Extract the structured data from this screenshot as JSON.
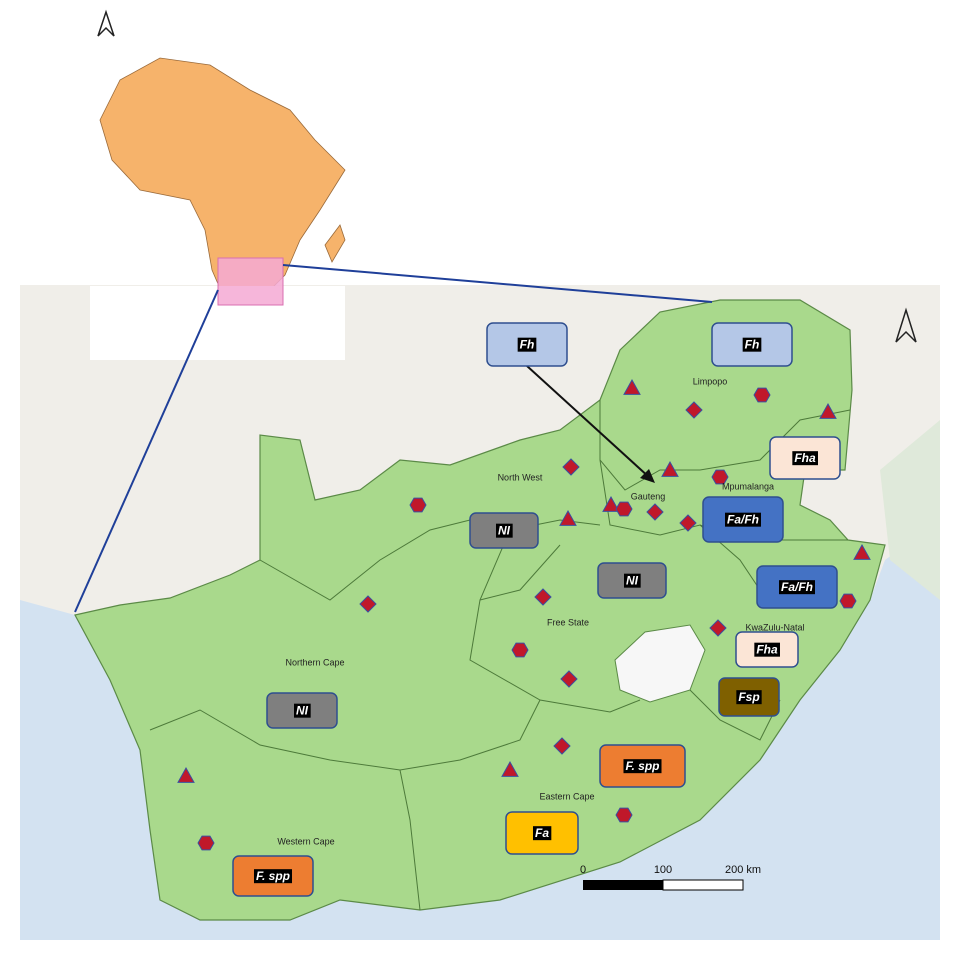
{
  "provinces": [
    "Limpopo",
    "Mpumalanga",
    "Gauteng",
    "North West",
    "Free State",
    "KwaZulu-Natal",
    "Northern Cape",
    "Eastern Cape",
    "Western Cape"
  ],
  "labels": [
    {
      "text": "Fh",
      "color": "#b4c7e7"
    },
    {
      "text": "Fh",
      "color": "#b4c7e7"
    },
    {
      "text": "Fha",
      "color": "#fbe5d6"
    },
    {
      "text": "Fa/Fh",
      "color": "#4472c4"
    },
    {
      "text": "NI",
      "color": "#7f7f7f"
    },
    {
      "text": "NI",
      "color": "#7f7f7f"
    },
    {
      "text": "Fa/Fh",
      "color": "#4472c4"
    },
    {
      "text": "Fha",
      "color": "#fbe5d6"
    },
    {
      "text": "Fsp",
      "color": "#7f6000"
    },
    {
      "text": "F. spp",
      "color": "#ed7d31"
    },
    {
      "text": "NI",
      "color": "#7f7f7f"
    },
    {
      "text": "Fa",
      "color": "#ffc000"
    },
    {
      "text": "F. spp",
      "color": "#ed7d31"
    }
  ],
  "scale_bar": {
    "ticks": [
      "0",
      "100",
      "200 km"
    ]
  }
}
